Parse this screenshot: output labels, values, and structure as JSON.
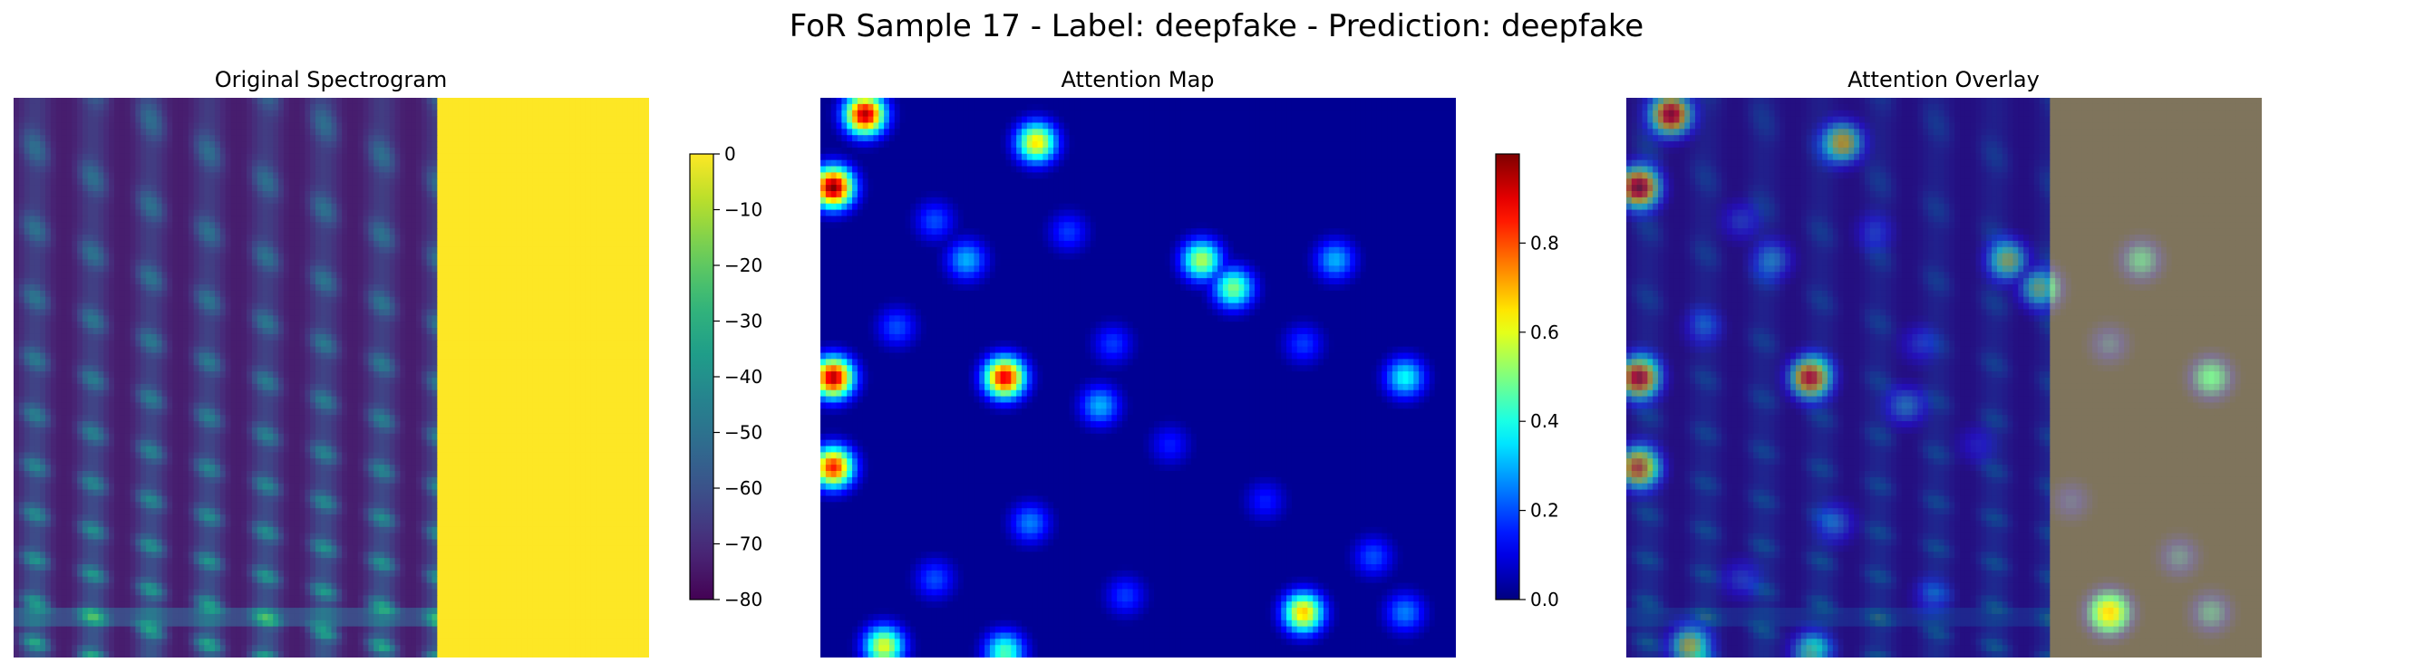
{
  "figure": {
    "suptitle": "FoR Sample 17 - Label: deepfake - Prediction: deepfake"
  },
  "colors": {
    "viridis_low": "#440154",
    "viridis_high": "#fde725",
    "jet_low": "#00007f",
    "jet_high": "#7f0000",
    "spine": "#000000"
  },
  "chart_data": [
    {
      "type": "heatmap",
      "title": "Original Spectrogram",
      "colormap": "viridis",
      "axes_visible": false,
      "colorbar": {
        "range": [
          -80,
          0
        ],
        "ticks": [
          0,
          -10,
          -20,
          -30,
          -40,
          -50,
          -60,
          -70,
          -80
        ],
        "tick_labels": [
          "0",
          "−10",
          "−20",
          "−30",
          "−40",
          "−50",
          "−60",
          "−70",
          "−80"
        ]
      },
      "content": {
        "speech_fraction_of_width": 0.67,
        "padding_value": 0,
        "silence_value": -80,
        "harmonic_bands": 11,
        "voiced_segments": 11
      }
    },
    {
      "type": "heatmap",
      "title": "Attention Map",
      "colormap": "jet",
      "axes_visible": false,
      "colorbar": {
        "range": [
          0.0,
          1.0
        ],
        "ticks": [
          0.0,
          0.2,
          0.4,
          0.6,
          0.8
        ],
        "tick_labels": [
          "0.0",
          "0.2",
          "0.4",
          "0.6",
          "0.8"
        ]
      },
      "hotspots": [
        {
          "x": 0.07,
          "y": 0.03,
          "value": 0.95
        },
        {
          "x": 0.02,
          "y": 0.16,
          "value": 1.0
        },
        {
          "x": 0.34,
          "y": 0.08,
          "value": 0.65
        },
        {
          "x": 0.6,
          "y": 0.29,
          "value": 0.55
        },
        {
          "x": 0.65,
          "y": 0.34,
          "value": 0.5
        },
        {
          "x": 0.23,
          "y": 0.29,
          "value": 0.3
        },
        {
          "x": 0.81,
          "y": 0.29,
          "value": 0.3
        },
        {
          "x": 0.02,
          "y": 0.5,
          "value": 0.95
        },
        {
          "x": 0.29,
          "y": 0.5,
          "value": 0.9
        },
        {
          "x": 0.44,
          "y": 0.55,
          "value": 0.3
        },
        {
          "x": 0.92,
          "y": 0.5,
          "value": 0.38
        },
        {
          "x": 0.02,
          "y": 0.66,
          "value": 0.85
        },
        {
          "x": 0.33,
          "y": 0.76,
          "value": 0.25
        },
        {
          "x": 0.76,
          "y": 0.92,
          "value": 0.68
        },
        {
          "x": 0.1,
          "y": 0.98,
          "value": 0.6
        },
        {
          "x": 0.29,
          "y": 0.99,
          "value": 0.45
        },
        {
          "x": 0.92,
          "y": 0.92,
          "value": 0.25
        },
        {
          "x": 0.18,
          "y": 0.22,
          "value": 0.2
        },
        {
          "x": 0.39,
          "y": 0.24,
          "value": 0.18
        },
        {
          "x": 0.12,
          "y": 0.41,
          "value": 0.2
        },
        {
          "x": 0.46,
          "y": 0.44,
          "value": 0.18
        },
        {
          "x": 0.76,
          "y": 0.44,
          "value": 0.18
        },
        {
          "x": 0.18,
          "y": 0.86,
          "value": 0.2
        },
        {
          "x": 0.48,
          "y": 0.89,
          "value": 0.18
        },
        {
          "x": 0.87,
          "y": 0.82,
          "value": 0.2
        },
        {
          "x": 0.55,
          "y": 0.62,
          "value": 0.15
        },
        {
          "x": 0.7,
          "y": 0.72,
          "value": 0.15
        }
      ]
    },
    {
      "type": "heatmap",
      "title": "Attention Overlay",
      "colormap": "jet over viridis",
      "axes_visible": false,
      "overlay_alpha": 0.5
    }
  ]
}
